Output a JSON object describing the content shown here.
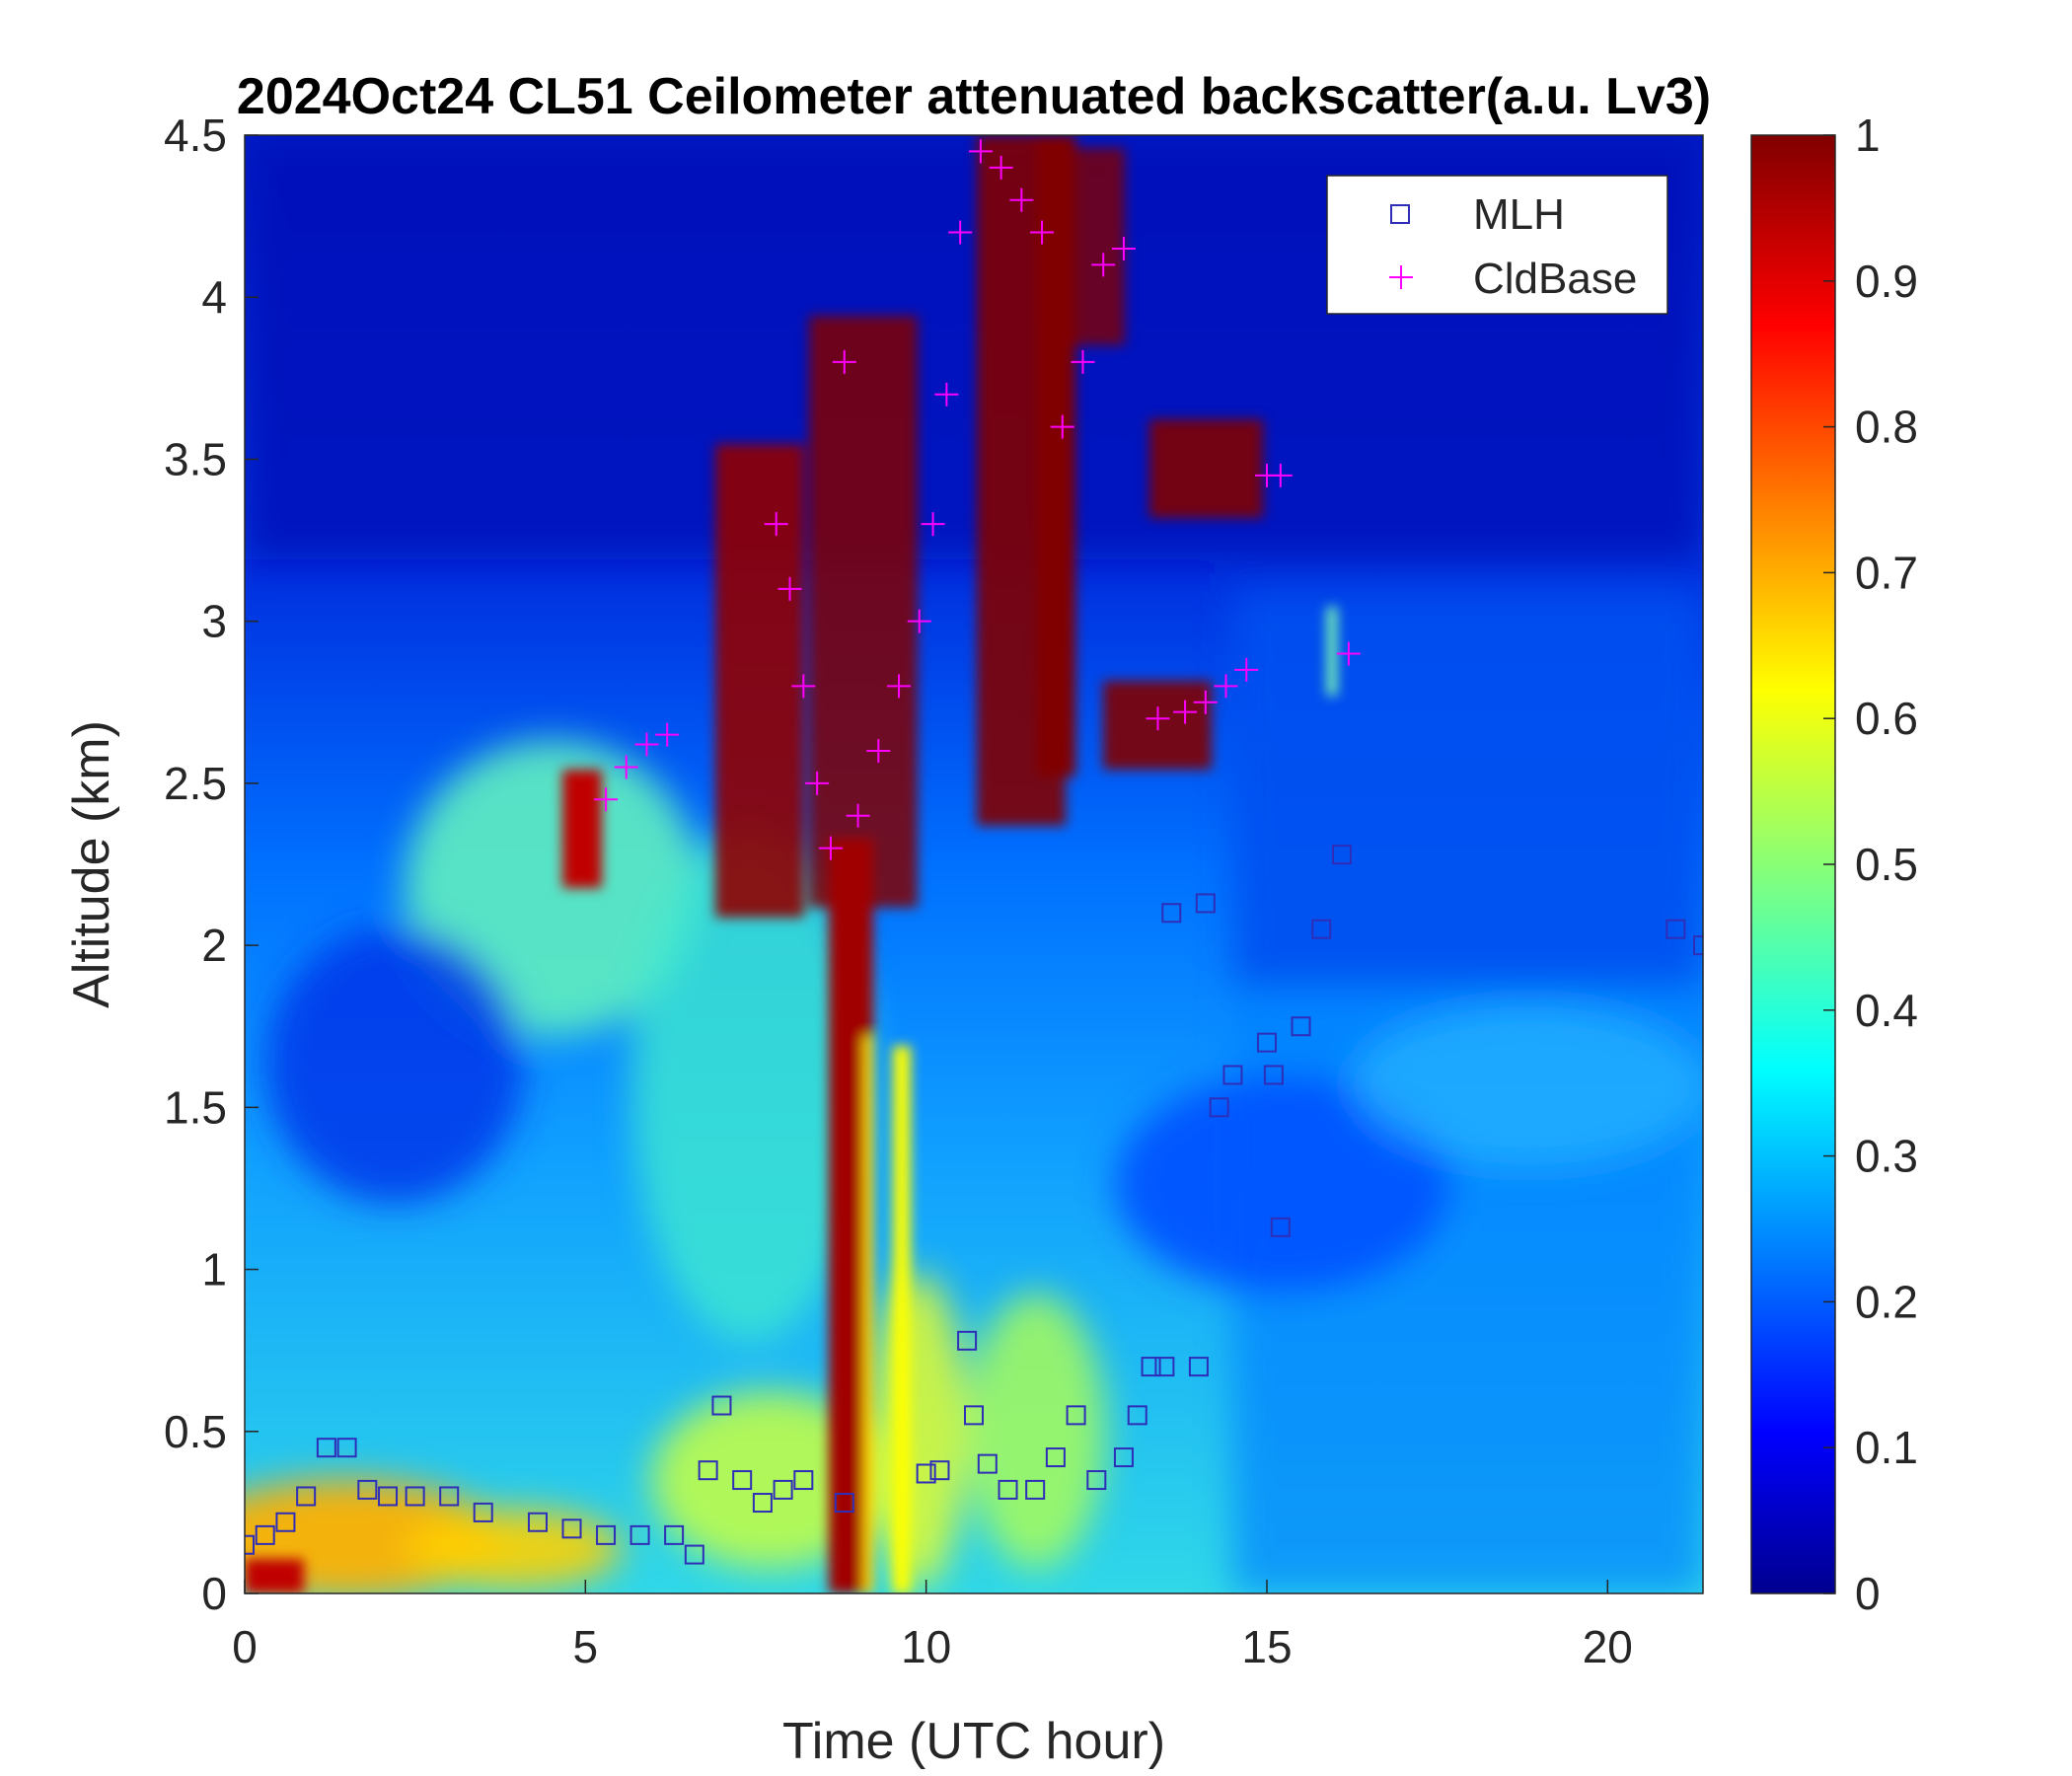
{
  "chart_data": {
    "type": "heatmap",
    "title": "2024Oct24 CL51 Ceilometer attenuated backscatter(a.u. Lv3)",
    "xlabel": "Time (UTC hour)",
    "ylabel": "Altitude (km)",
    "xlim": [
      0,
      21.4
    ],
    "ylim": [
      0,
      4.5
    ],
    "x_ticks": [
      "0",
      "5",
      "10",
      "15",
      "20"
    ],
    "y_ticks": [
      "0",
      "0.5",
      "1",
      "1.5",
      "2",
      "2.5",
      "3",
      "3.5",
      "4",
      "4.5"
    ],
    "colorbar": {
      "colormap": "jet",
      "range": [
        0,
        1
      ],
      "ticks": [
        "0",
        "0.1",
        "0.2",
        "0.3",
        "0.4",
        "0.5",
        "0.6",
        "0.7",
        "0.8",
        "0.9",
        "1"
      ]
    },
    "legend": {
      "placement": "top-right",
      "entries": [
        {
          "name": "MLH",
          "marker": "square",
          "color": "#2e2eb8"
        },
        {
          "name": "CldBase",
          "marker": "plus",
          "color": "#ff00ff"
        }
      ]
    },
    "series": [
      {
        "name": "MLH",
        "x": [
          0,
          0.3,
          0.6,
          0.9,
          1.2,
          1.5,
          1.8,
          2.1,
          2.5,
          3.0,
          3.5,
          4.3,
          4.8,
          5.3,
          5.8,
          6.3,
          6.6,
          6.8,
          7.0,
          7.3,
          7.6,
          7.9,
          8.2,
          8.8,
          10.0,
          10.2,
          10.6,
          10.7,
          10.9,
          11.2,
          11.6,
          11.9,
          12.2,
          12.5,
          12.9,
          13.1,
          13.3,
          13.5,
          13.6,
          14.0,
          14.1,
          14.3,
          14.5,
          15.0,
          15.1,
          15.2,
          15.5,
          15.8,
          16.1,
          21.0,
          21.4
        ],
        "y": [
          0.15,
          0.18,
          0.22,
          0.3,
          0.45,
          0.45,
          0.32,
          0.3,
          0.3,
          0.3,
          0.25,
          0.22,
          0.2,
          0.18,
          0.18,
          0.18,
          0.12,
          0.38,
          0.58,
          0.35,
          0.28,
          0.32,
          0.35,
          0.28,
          0.37,
          0.38,
          0.78,
          0.55,
          0.4,
          0.32,
          0.32,
          0.42,
          0.55,
          0.35,
          0.42,
          0.55,
          0.7,
          0.7,
          2.1,
          0.7,
          2.13,
          1.5,
          1.6,
          1.7,
          1.6,
          1.13,
          1.75,
          2.05,
          2.28,
          2.05,
          2.0
        ]
      },
      {
        "name": "CldBase",
        "x": [
          5.3,
          5.6,
          5.9,
          6.2,
          7.8,
          8.0,
          8.2,
          8.4,
          8.6,
          8.8,
          9.0,
          9.3,
          9.6,
          9.9,
          10.1,
          10.3,
          10.5,
          10.8,
          11.1,
          11.4,
          11.7,
          12.0,
          12.3,
          12.6,
          12.9,
          13.4,
          13.8,
          14.1,
          14.4,
          14.7,
          15.0,
          15.2,
          16.2
        ],
        "y": [
          2.45,
          2.55,
          2.62,
          2.65,
          3.3,
          3.1,
          2.8,
          2.5,
          2.3,
          3.8,
          2.4,
          2.6,
          2.8,
          3.0,
          3.3,
          3.7,
          4.2,
          4.45,
          4.4,
          4.3,
          4.2,
          3.6,
          3.8,
          4.1,
          4.15,
          2.7,
          2.72,
          2.75,
          2.8,
          2.85,
          3.45,
          3.45,
          2.9
        ]
      }
    ]
  }
}
